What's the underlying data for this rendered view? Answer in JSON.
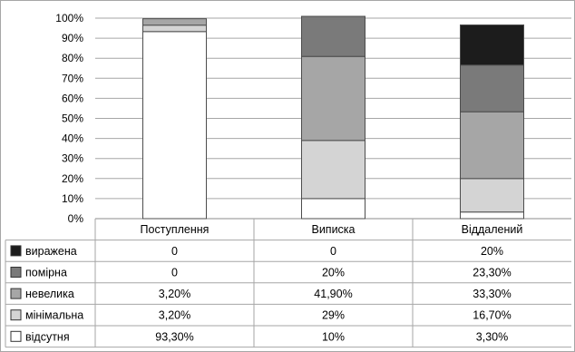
{
  "chart_data": {
    "type": "bar",
    "stacked": true,
    "percent_stacked": true,
    "categories": [
      "Поступлення",
      "Виписка",
      "Віддалений"
    ],
    "y_ticks": [
      "0%",
      "10%",
      "20%",
      "30%",
      "40%",
      "50%",
      "60%",
      "70%",
      "80%",
      "90%",
      "100%"
    ],
    "ylim": [
      0,
      100
    ],
    "grid": true,
    "legend": "data-table-left",
    "series": [
      {
        "name": "відсутня",
        "color": "#ffffff",
        "values": [
          93.3,
          10,
          3.3
        ],
        "labels": [
          "93,30%",
          "10%",
          "3,30%"
        ]
      },
      {
        "name": "мінімальна",
        "color": "#d4d4d4",
        "values": [
          3.2,
          29,
          16.7
        ],
        "labels": [
          "3,20%",
          "29%",
          "16,70%"
        ]
      },
      {
        "name": "невелика",
        "color": "#a6a6a6",
        "values": [
          3.2,
          41.9,
          33.3
        ],
        "labels": [
          "3,20%",
          "41,90%",
          "33,30%"
        ]
      },
      {
        "name": "помірна",
        "color": "#7a7a7a",
        "values": [
          0,
          20,
          23.3
        ],
        "labels": [
          "0",
          "20%",
          "23,30%"
        ]
      },
      {
        "name": "виражена",
        "color": "#1c1c1c",
        "values": [
          0,
          0,
          20
        ],
        "labels": [
          "0",
          "0",
          "20%"
        ]
      }
    ]
  }
}
